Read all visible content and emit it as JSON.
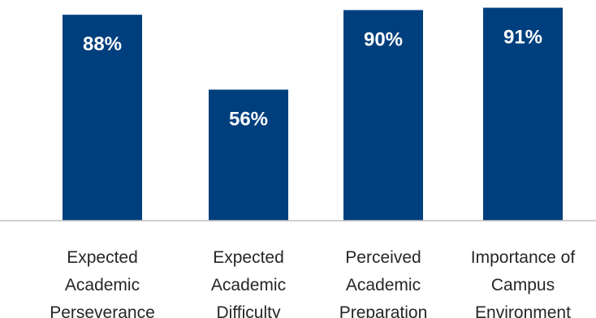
{
  "chart_data": {
    "type": "bar",
    "categories": [
      [
        "Expected",
        "Academic",
        "Perseverance"
      ],
      [
        "Expected",
        "Academic",
        "Difficulty"
      ],
      [
        "Perceived",
        "Academic",
        "Preparation"
      ],
      [
        "Importance of",
        "Campus",
        "Environment"
      ]
    ],
    "values": [
      88,
      56,
      90,
      91
    ],
    "value_labels": [
      "88%",
      "56%",
      "90%",
      "91%"
    ],
    "ylim": [
      0,
      95
    ],
    "grid": false,
    "bar_color": "#003f7d",
    "label_color": "#ffffff"
  }
}
